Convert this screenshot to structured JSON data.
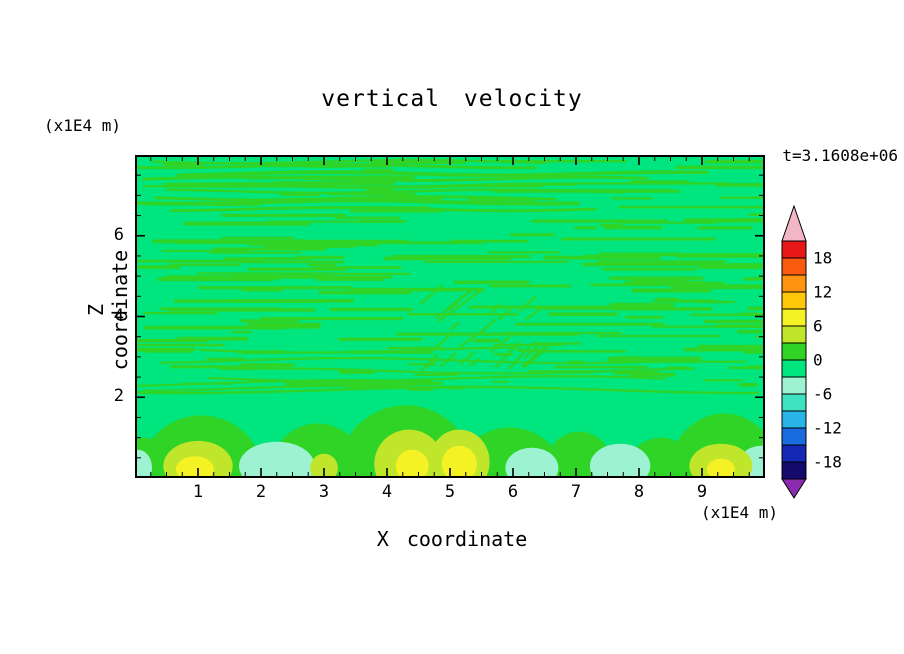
{
  "figure": {
    "title": "vertical velocity",
    "time_annotation": "t=3.1608e+06",
    "y_unit_label": "(x1E4 m)",
    "x_unit_label": "(x1E4 m)",
    "x_axis_label": "X coordinate",
    "y_axis_label": "Z coordinate"
  },
  "chart_data": {
    "type": "heatmap",
    "title": "vertical velocity",
    "time_label": "t=3.1608e+06",
    "xlabel": "X coordinate",
    "ylabel": "Z coordinate",
    "x_unit": "(x1E4 m)",
    "y_unit": "(x1E4 m)",
    "xlim": [
      0,
      10
    ],
    "ylim": [
      0,
      8
    ],
    "x_ticks": [
      1,
      2,
      3,
      4,
      5,
      6,
      7,
      8,
      9
    ],
    "y_ticks": [
      2,
      4,
      6
    ],
    "grid": false,
    "legend_position": "right-colorbar",
    "colorbar": {
      "labels": [
        18,
        12,
        6,
        0,
        -6,
        -12,
        -18
      ],
      "level_max": 21,
      "level_step": 3,
      "band_colors_top_to_bottom": [
        "#e81818",
        "#fa5a10",
        "#ff9410",
        "#ffc80a",
        "#f4f224",
        "#bfe62a",
        "#2fd426",
        "#00e57e",
        "#9df2d2",
        "#3fe3c2",
        "#28b4e6",
        "#1a6ae0",
        "#1428b4",
        "#140a6e"
      ],
      "over_arrow_color": "#f2b6c6",
      "under_arrow_color": "#8a2bb0"
    },
    "field": {
      "description": "Vertical velocity section: near-zero (±3) alternating horizontal streak bands for z between about 2 and 8 (x1E4 m), a patch of fine diagonal wave striations near x≈4.5–5, z≈3–4, and convective plumes below z≈2 with cores reaching about +9 (yellow) and troughs near -6 (pale cyan).",
      "background_value": -1,
      "streak_value": 1,
      "texture": {
        "seed": 13,
        "streak_count": 210,
        "long_streak_count": 9,
        "mid_wavy_count": 5,
        "diagonal_segment_count": 26
      },
      "blobs": [
        {
          "x": 0.15,
          "z": 0.0,
          "rx": 0.45,
          "rz": 1.0,
          "v": 1.5
        },
        {
          "x": 1.05,
          "z": 0.0,
          "rx": 1.0,
          "rz": 1.55,
          "v": 1.5
        },
        {
          "x": 2.9,
          "z": 0.0,
          "rx": 0.8,
          "rz": 1.35,
          "v": 1.5
        },
        {
          "x": 4.3,
          "z": 0.05,
          "rx": 1.1,
          "rz": 1.75,
          "v": 1.5
        },
        {
          "x": 5.95,
          "z": 0.0,
          "rx": 0.85,
          "rz": 1.25,
          "v": 1.5
        },
        {
          "x": 7.05,
          "z": 0.0,
          "rx": 0.6,
          "rz": 1.15,
          "v": 1.5
        },
        {
          "x": 8.35,
          "z": 0.0,
          "rx": 0.6,
          "rz": 1.0,
          "v": 1.5
        },
        {
          "x": 9.35,
          "z": 0.0,
          "rx": 0.9,
          "rz": 1.6,
          "v": 1.5
        },
        {
          "x": 0.05,
          "z": 0.25,
          "rx": 0.22,
          "rz": 0.45,
          "v": -4.5
        },
        {
          "x": 2.25,
          "z": 0.3,
          "rx": 0.6,
          "rz": 0.6,
          "v": -4.5
        },
        {
          "x": 6.3,
          "z": 0.25,
          "rx": 0.42,
          "rz": 0.5,
          "v": -4.5
        },
        {
          "x": 7.7,
          "z": 0.3,
          "rx": 0.48,
          "rz": 0.55,
          "v": -4.5
        },
        {
          "x": 9.95,
          "z": 0.25,
          "rx": 0.4,
          "rz": 0.55,
          "v": -4.5
        },
        {
          "x": 1.0,
          "z": 0.3,
          "rx": 0.55,
          "rz": 0.62,
          "v": 4.5
        },
        {
          "x": 3.0,
          "z": 0.25,
          "rx": 0.22,
          "rz": 0.35,
          "v": 4.5
        },
        {
          "x": 4.35,
          "z": 0.35,
          "rx": 0.55,
          "rz": 0.85,
          "v": 4.5
        },
        {
          "x": 5.15,
          "z": 0.4,
          "rx": 0.48,
          "rz": 0.8,
          "v": 4.5
        },
        {
          "x": 9.3,
          "z": 0.3,
          "rx": 0.5,
          "rz": 0.55,
          "v": 4.5
        },
        {
          "x": 0.95,
          "z": 0.22,
          "rx": 0.3,
          "rz": 0.32,
          "v": 7.5
        },
        {
          "x": 4.4,
          "z": 0.3,
          "rx": 0.26,
          "rz": 0.4,
          "v": 7.5
        },
        {
          "x": 5.15,
          "z": 0.35,
          "rx": 0.28,
          "rz": 0.45,
          "v": 7.5
        },
        {
          "x": 9.3,
          "z": 0.22,
          "rx": 0.22,
          "rz": 0.26,
          "v": 7.5
        }
      ]
    }
  }
}
